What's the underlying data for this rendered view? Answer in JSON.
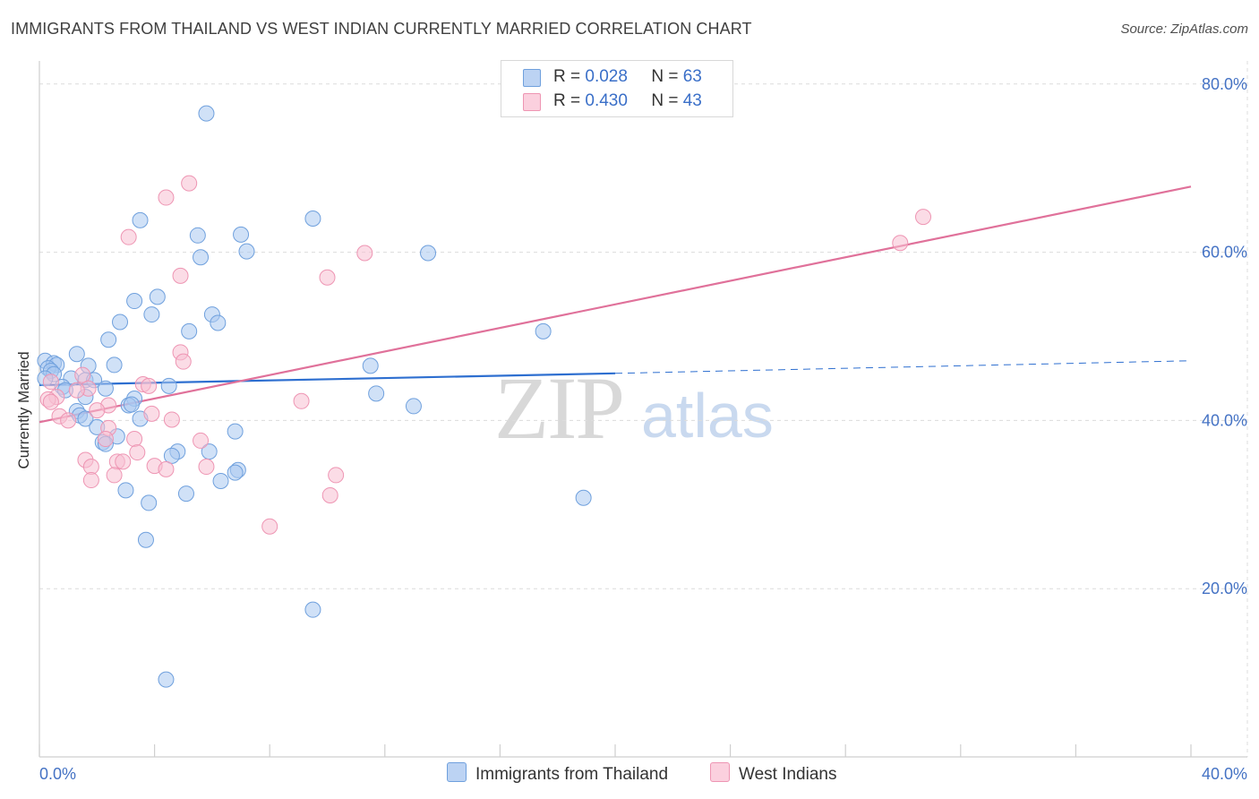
{
  "header": {
    "title": "IMMIGRANTS FROM THAILAND VS WEST INDIAN CURRENTLY MARRIED CORRELATION CHART",
    "source": "Source: ZipAtlas.com"
  },
  "watermark": {
    "zip": "ZIP",
    "atlas": "atlas"
  },
  "legend": {
    "r_label": "R =",
    "n_label": "N =",
    "rows": [
      {
        "r": "0.028",
        "n": "63",
        "color": "#a9c8f0"
      },
      {
        "r": "0.430",
        "n": "43",
        "color": "#f7b8cc"
      }
    ]
  },
  "bottom_legend": {
    "series1": "Immigrants from Thailand",
    "series2": "West Indians"
  },
  "colors": {
    "blue_fill": "#a9c8f0",
    "blue_stroke": "#6fa0dd",
    "blue_line": "#2e6fd0",
    "pink_fill": "#f7c0d2",
    "pink_stroke": "#ee95b3",
    "pink_line": "#e0719a"
  },
  "chart_data": {
    "type": "scatter",
    "title": "IMMIGRANTS FROM THAILAND VS WEST INDIAN CURRENTLY MARRIED CORRELATION CHART",
    "xlabel": "",
    "ylabel": "Currently Married",
    "xlim": [
      0,
      40
    ],
    "ylim": [
      0,
      82
    ],
    "x_tick_labels": [
      "0.0%",
      "40.0%"
    ],
    "y_ticks": [
      20,
      40,
      60,
      80
    ],
    "y_tick_labels": [
      "20.0%",
      "40.0%",
      "60.0%",
      "80.0%"
    ],
    "grid": true,
    "series": [
      {
        "name": "Immigrants from Thailand",
        "r": 0.028,
        "n": 63,
        "trend": {
          "x0": 0,
          "y0": 44.2,
          "x1": 20,
          "y1": 45.6,
          "dashed_to_x": 40,
          "dashed_to_y": 47.1
        },
        "points": [
          [
            5.8,
            76.5
          ],
          [
            3.5,
            63.8
          ],
          [
            9.5,
            64.0
          ],
          [
            5.5,
            62.0
          ],
          [
            7.0,
            62.1
          ],
          [
            5.6,
            59.4
          ],
          [
            7.2,
            60.1
          ],
          [
            13.5,
            59.9
          ],
          [
            3.3,
            54.2
          ],
          [
            4.1,
            54.7
          ],
          [
            3.9,
            52.6
          ],
          [
            6.0,
            52.6
          ],
          [
            2.8,
            51.7
          ],
          [
            6.2,
            51.6
          ],
          [
            5.2,
            50.6
          ],
          [
            17.5,
            50.6
          ],
          [
            2.4,
            49.6
          ],
          [
            1.3,
            47.9
          ],
          [
            0.2,
            47.1
          ],
          [
            0.5,
            46.8
          ],
          [
            0.6,
            46.6
          ],
          [
            1.7,
            46.5
          ],
          [
            2.6,
            46.6
          ],
          [
            11.5,
            46.5
          ],
          [
            0.3,
            46.2
          ],
          [
            0.4,
            45.9
          ],
          [
            0.5,
            45.5
          ],
          [
            1.1,
            45.0
          ],
          [
            1.6,
            44.8
          ],
          [
            1.9,
            44.8
          ],
          [
            0.8,
            44.0
          ],
          [
            2.3,
            43.8
          ],
          [
            4.5,
            44.1
          ],
          [
            0.9,
            43.6
          ],
          [
            1.6,
            42.8
          ],
          [
            3.3,
            42.6
          ],
          [
            11.7,
            43.2
          ],
          [
            3.1,
            41.8
          ],
          [
            3.2,
            41.9
          ],
          [
            13.0,
            41.7
          ],
          [
            1.3,
            41.1
          ],
          [
            1.4,
            40.6
          ],
          [
            1.6,
            40.2
          ],
          [
            3.5,
            40.2
          ],
          [
            2.0,
            39.2
          ],
          [
            6.8,
            38.7
          ],
          [
            2.7,
            38.1
          ],
          [
            2.2,
            37.4
          ],
          [
            2.3,
            37.2
          ],
          [
            4.8,
            36.3
          ],
          [
            5.9,
            36.3
          ],
          [
            4.6,
            35.8
          ],
          [
            6.9,
            34.1
          ],
          [
            6.8,
            33.8
          ],
          [
            6.3,
            32.8
          ],
          [
            3.0,
            31.7
          ],
          [
            5.1,
            31.3
          ],
          [
            18.9,
            30.8
          ],
          [
            3.8,
            30.2
          ],
          [
            3.7,
            25.8
          ],
          [
            9.5,
            17.5
          ],
          [
            4.4,
            9.2
          ],
          [
            0.2,
            45.0
          ]
        ]
      },
      {
        "name": "West Indians",
        "r": 0.43,
        "n": 43,
        "trend": {
          "x0": 0,
          "y0": 39.8,
          "x1": 40,
          "y1": 67.8
        },
        "points": [
          [
            5.2,
            68.2
          ],
          [
            4.4,
            66.5
          ],
          [
            30.7,
            64.2
          ],
          [
            3.1,
            61.8
          ],
          [
            29.9,
            61.1
          ],
          [
            11.3,
            59.9
          ],
          [
            4.9,
            57.2
          ],
          [
            10.0,
            57.0
          ],
          [
            4.9,
            48.1
          ],
          [
            5.0,
            47.0
          ],
          [
            1.5,
            45.4
          ],
          [
            0.4,
            44.6
          ],
          [
            3.6,
            44.3
          ],
          [
            1.7,
            43.8
          ],
          [
            1.3,
            43.6
          ],
          [
            0.6,
            42.8
          ],
          [
            0.3,
            42.5
          ],
          [
            0.4,
            42.2
          ],
          [
            9.1,
            42.3
          ],
          [
            2.4,
            41.8
          ],
          [
            2.0,
            41.2
          ],
          [
            3.9,
            40.8
          ],
          [
            0.7,
            40.5
          ],
          [
            1.0,
            40.0
          ],
          [
            4.6,
            40.1
          ],
          [
            2.4,
            39.1
          ],
          [
            5.6,
            37.6
          ],
          [
            2.3,
            37.8
          ],
          [
            3.3,
            37.8
          ],
          [
            3.4,
            36.2
          ],
          [
            1.6,
            35.3
          ],
          [
            2.7,
            35.1
          ],
          [
            2.9,
            35.1
          ],
          [
            4.0,
            34.6
          ],
          [
            1.8,
            34.5
          ],
          [
            5.8,
            34.5
          ],
          [
            4.4,
            34.2
          ],
          [
            2.6,
            33.5
          ],
          [
            10.3,
            33.5
          ],
          [
            1.8,
            32.9
          ],
          [
            10.1,
            31.1
          ],
          [
            8.0,
            27.4
          ],
          [
            3.8,
            44.1
          ]
        ]
      }
    ]
  }
}
